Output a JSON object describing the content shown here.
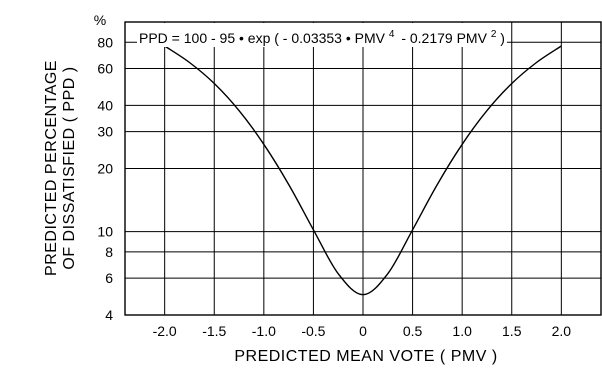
{
  "chart_data": {
    "type": "line",
    "xlabel": "PREDICTED  MEAN  VOTE  ( PMV )",
    "ylabel_line1": "PREDICTED  PERCENTAGE",
    "ylabel_line2": "OF  DISSATISFIED  ( PPD )",
    "y_unit": "%",
    "equation": {
      "prefix": "PPD = 100 - 95 • exp ( - 0.03353 • PMV",
      "sup1": "4",
      "middle": "- 0.2179 PMV",
      "sup2": "2",
      "suffix": ")"
    },
    "y_scale": "log",
    "xlim": [
      -2.4,
      2.4
    ],
    "ylim": [
      4,
      100
    ],
    "x_ticks": [
      -2.0,
      -1.5,
      -1.0,
      -0.5,
      0,
      0.5,
      1.0,
      1.5,
      2.0
    ],
    "x_tick_labels": [
      "-2.0",
      "-1.5",
      "-1.0",
      "-0.5",
      "0",
      "0.5",
      "1.0",
      "1.5",
      "2.0"
    ],
    "y_ticks": [
      4,
      6,
      8,
      10,
      20,
      30,
      40,
      60,
      80
    ],
    "y_tick_labels": [
      "4",
      "6",
      "8",
      "10",
      "20",
      "30",
      "40",
      "60",
      "80"
    ],
    "grid": true,
    "series": [
      {
        "x": [
          -2.0,
          -1.75,
          -1.5,
          -1.25,
          -1.0,
          -0.75,
          -0.5,
          -0.25,
          0,
          0.25,
          0.5,
          0.75,
          1.0,
          1.25,
          1.5,
          1.75,
          2.0
        ],
        "y": [
          76.8,
          64.1,
          50.9,
          37.8,
          26.1,
          16.8,
          10.2,
          6.3,
          5.0,
          6.3,
          10.2,
          16.8,
          26.1,
          37.8,
          50.9,
          64.1,
          76.8
        ]
      }
    ]
  }
}
